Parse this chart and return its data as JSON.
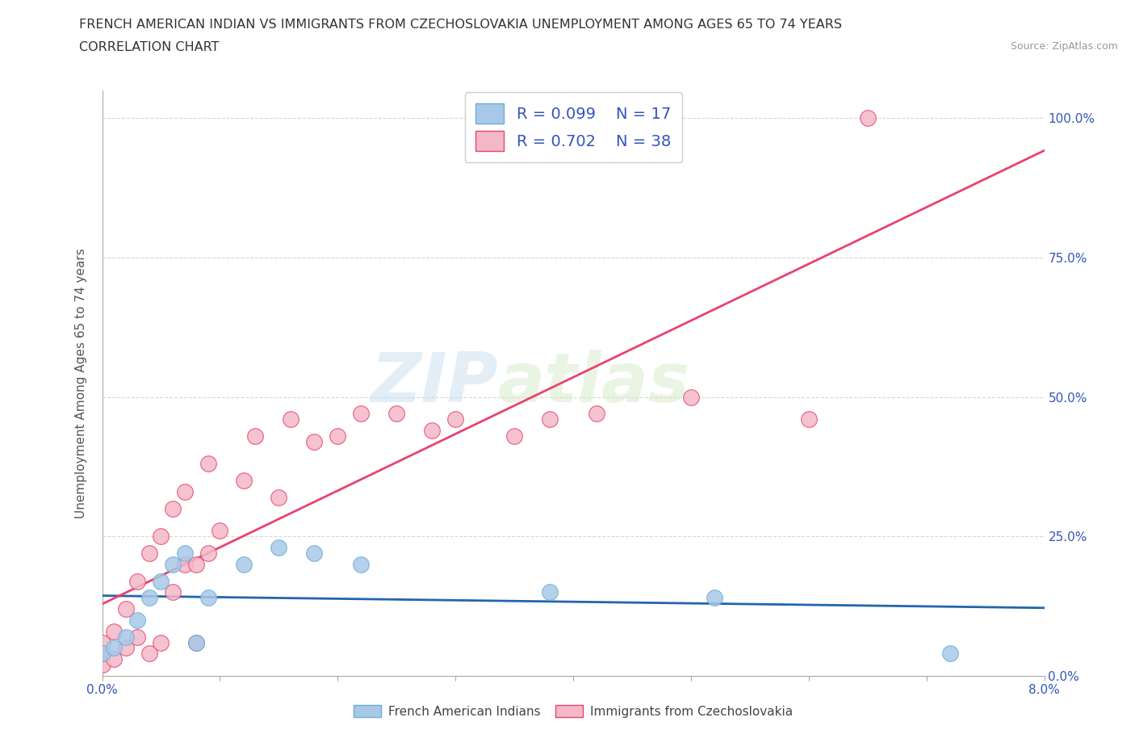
{
  "title_line1": "FRENCH AMERICAN INDIAN VS IMMIGRANTS FROM CZECHOSLOVAKIA UNEMPLOYMENT AMONG AGES 65 TO 74 YEARS",
  "title_line2": "CORRELATION CHART",
  "source_text": "Source: ZipAtlas.com",
  "ylabel": "Unemployment Among Ages 65 to 74 years",
  "xlim": [
    0.0,
    0.08
  ],
  "ylim": [
    0.0,
    1.05
  ],
  "x_ticks": [
    0.0,
    0.01,
    0.02,
    0.03,
    0.04,
    0.05,
    0.06,
    0.07,
    0.08
  ],
  "x_tick_labels": [
    "0.0%",
    "",
    "",
    "",
    "",
    "",
    "",
    "",
    "8.0%"
  ],
  "y_ticks": [
    0.0,
    0.25,
    0.5,
    0.75,
    1.0
  ],
  "y_tick_labels": [
    "0.0%",
    "25.0%",
    "50.0%",
    "75.0%",
    "100.0%"
  ],
  "blue_color": "#a8c8e8",
  "blue_edge_color": "#6baed6",
  "pink_color": "#f4b8c8",
  "pink_edge_color": "#e8436e",
  "blue_line_color": "#2166ac",
  "pink_line_color": "#e8436e",
  "R_blue": 0.099,
  "N_blue": 17,
  "R_pink": 0.702,
  "N_pink": 38,
  "legend_label_blue": "French American Indians",
  "legend_label_pink": "Immigrants from Czechoslovakia",
  "watermark_zip": "ZIP",
  "watermark_atlas": "atlas",
  "blue_scatter_x": [
    0.0,
    0.001,
    0.002,
    0.003,
    0.004,
    0.005,
    0.006,
    0.007,
    0.008,
    0.009,
    0.012,
    0.015,
    0.018,
    0.022,
    0.038,
    0.052,
    0.072
  ],
  "blue_scatter_y": [
    0.04,
    0.05,
    0.07,
    0.1,
    0.14,
    0.17,
    0.2,
    0.22,
    0.06,
    0.14,
    0.2,
    0.23,
    0.22,
    0.2,
    0.15,
    0.14,
    0.04
  ],
  "pink_scatter_x": [
    0.0,
    0.0,
    0.0,
    0.001,
    0.001,
    0.002,
    0.002,
    0.003,
    0.003,
    0.004,
    0.004,
    0.005,
    0.005,
    0.006,
    0.006,
    0.007,
    0.007,
    0.008,
    0.008,
    0.009,
    0.009,
    0.01,
    0.012,
    0.013,
    0.015,
    0.016,
    0.018,
    0.02,
    0.022,
    0.025,
    0.028,
    0.03,
    0.035,
    0.038,
    0.042,
    0.05,
    0.06,
    0.065
  ],
  "pink_scatter_y": [
    0.02,
    0.04,
    0.06,
    0.03,
    0.08,
    0.05,
    0.12,
    0.07,
    0.17,
    0.04,
    0.22,
    0.06,
    0.25,
    0.15,
    0.3,
    0.2,
    0.33,
    0.2,
    0.06,
    0.22,
    0.38,
    0.26,
    0.35,
    0.43,
    0.32,
    0.46,
    0.42,
    0.43,
    0.47,
    0.47,
    0.44,
    0.46,
    0.43,
    0.46,
    0.47,
    0.5,
    0.46,
    1.0
  ],
  "blue_marker_size": 200,
  "pink_marker_size": 200,
  "background_color": "#ffffff",
  "grid_color": "#cccccc",
  "legend_text_color": "#3355bb",
  "tick_color": "#3355bb",
  "title_color": "#333333",
  "source_color": "#999999",
  "ylabel_color": "#555555"
}
